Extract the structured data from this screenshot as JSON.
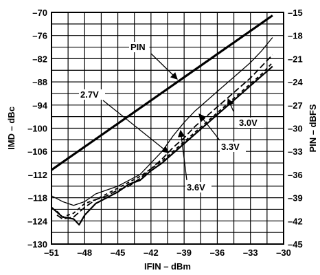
{
  "chart_data": {
    "type": "line",
    "title": "",
    "xlabel": "IFIN – dBm",
    "ylabel": "IMD – dBc",
    "y2label": "PIN – dBFS",
    "xlim": [
      -51,
      -30
    ],
    "ylim": [
      -130,
      -70
    ],
    "y2lim": [
      -45,
      -15
    ],
    "xticks": [
      "–51",
      "–48",
      "–45",
      "–42",
      "–39",
      "–36",
      "–33",
      "–30"
    ],
    "yticks": [
      "–70",
      "–76",
      "–82",
      "–88",
      "–94",
      "–100",
      "–106",
      "–112",
      "–118",
      "–124",
      "–130"
    ],
    "y2ticks": [
      "–15",
      "–18",
      "–21",
      "–24",
      "–27",
      "–30",
      "–33",
      "–36",
      "–39",
      "–42",
      "–45"
    ],
    "grid": true,
    "annotations": [
      "PIN",
      "2.7V",
      "3.0V",
      "3.3V",
      "3.6V"
    ],
    "series": [
      {
        "name": "PIN",
        "axis": "right",
        "style": "thick-solid",
        "x": [
          -51,
          -31
        ],
        "y": [
          -35.4,
          -15.4
        ]
      },
      {
        "name": "2.7V",
        "axis": "left",
        "style": "thin-solid",
        "x": [
          -51,
          -50,
          -49,
          -48,
          -47,
          -46,
          -45,
          -44,
          -43,
          -42,
          -41,
          -40,
          -39,
          -38,
          -37,
          -36,
          -35,
          -34,
          -33,
          -32,
          -31
        ],
        "y": [
          -117.5,
          -119,
          -120,
          -119,
          -117,
          -116,
          -115,
          -113.5,
          -112,
          -109,
          -106,
          -102,
          -98.5,
          -95.5,
          -93,
          -90.5,
          -88,
          -85.5,
          -83,
          -80,
          -76.5
        ]
      },
      {
        "name": "3.0V",
        "axis": "left",
        "style": "long-dash",
        "x": [
          -50.5,
          -50,
          -49,
          -48,
          -47,
          -46,
          -45,
          -44,
          -43,
          -42,
          -41,
          -40,
          -39,
          -38,
          -37,
          -36,
          -35,
          -34,
          -33,
          -32,
          -31
        ],
        "y": [
          -122.5,
          -123.5,
          -123,
          -120.5,
          -118.5,
          -117.5,
          -116,
          -115,
          -113,
          -110.5,
          -108,
          -105,
          -102.5,
          -99.5,
          -97,
          -94.5,
          -92,
          -89.5,
          -87,
          -84,
          -81
        ]
      },
      {
        "name": "3.3V",
        "axis": "left",
        "style": "short-dash",
        "x": [
          -50.5,
          -50,
          -49,
          -48,
          -47,
          -46,
          -45,
          -44,
          -43,
          -42,
          -41,
          -40,
          -39,
          -38,
          -37,
          -36,
          -35,
          -34,
          -33,
          -32,
          -31
        ],
        "y": [
          -121.5,
          -123,
          -122,
          -119.5,
          -118.5,
          -117,
          -115.5,
          -114,
          -112.5,
          -110.5,
          -108.5,
          -106,
          -103.5,
          -101,
          -98.5,
          -96,
          -93.5,
          -91,
          -88.5,
          -86,
          -83
        ]
      },
      {
        "name": "3.6V",
        "axis": "left",
        "style": "medium-solid",
        "x": [
          -51,
          -50,
          -49,
          -48.5,
          -48,
          -47,
          -46,
          -45,
          -44,
          -43,
          -42,
          -41,
          -40,
          -39,
          -38,
          -37,
          -36,
          -35,
          -34,
          -33,
          -32,
          -31
        ],
        "y": [
          -120.5,
          -123,
          -123.5,
          -125,
          -122.5,
          -119.5,
          -118,
          -116.5,
          -114.5,
          -113.5,
          -111,
          -109,
          -106.5,
          -104,
          -101.5,
          -99,
          -96.5,
          -94,
          -91.5,
          -89,
          -86.5,
          -84
        ]
      }
    ]
  }
}
